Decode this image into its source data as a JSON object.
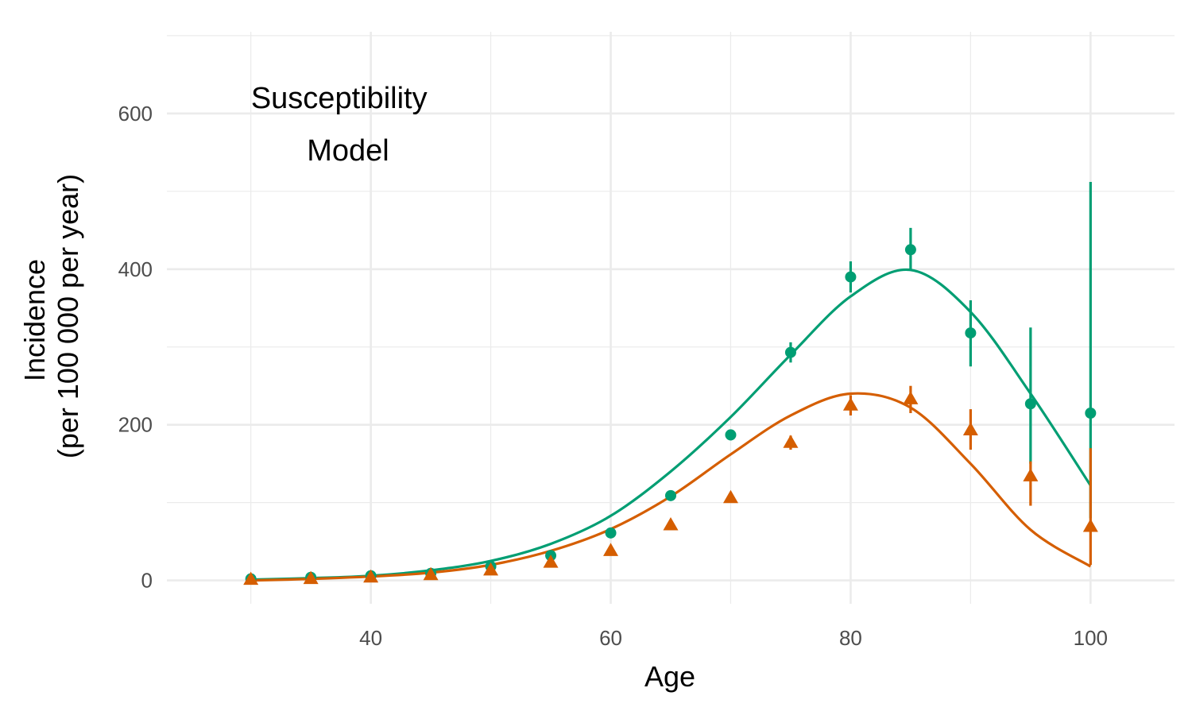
{
  "chart_data": {
    "type": "scatter",
    "xlabel": "Age",
    "ylabel_lines": [
      "Incidence",
      "(per 100 000 per year)"
    ],
    "annotation_lines": [
      "Susceptibility",
      "Model"
    ],
    "xlim": [
      23,
      107
    ],
    "ylim": [
      -30,
      705
    ],
    "x_ticks": [
      40,
      60,
      80,
      100
    ],
    "y_ticks": [
      0,
      200,
      400,
      600
    ],
    "x_minor": [
      30,
      50,
      70,
      90
    ],
    "y_minor": [
      100,
      300,
      500,
      700
    ],
    "grid": true,
    "colors": {
      "green": "#009E73",
      "orange": "#D55E00"
    },
    "series": [
      {
        "color": "#009E73",
        "marker": "circle",
        "points": [
          {
            "x": 30,
            "y": 2,
            "lo": 0,
            "hi": 4
          },
          {
            "x": 35,
            "y": 4,
            "lo": 2,
            "hi": 6
          },
          {
            "x": 40,
            "y": 6,
            "lo": 4,
            "hi": 8
          },
          {
            "x": 45,
            "y": 9,
            "lo": 7,
            "hi": 11
          },
          {
            "x": 50,
            "y": 18,
            "lo": 15,
            "hi": 21
          },
          {
            "x": 55,
            "y": 32,
            "lo": 28,
            "hi": 36
          },
          {
            "x": 60,
            "y": 61,
            "lo": 56,
            "hi": 66
          },
          {
            "x": 65,
            "y": 109,
            "lo": 103,
            "hi": 115
          },
          {
            "x": 70,
            "y": 187,
            "lo": 180,
            "hi": 194
          },
          {
            "x": 75,
            "y": 293,
            "lo": 280,
            "hi": 306
          },
          {
            "x": 80,
            "y": 390,
            "lo": 370,
            "hi": 410
          },
          {
            "x": 85,
            "y": 425,
            "lo": 398,
            "hi": 453
          },
          {
            "x": 90,
            "y": 318,
            "lo": 275,
            "hi": 360
          },
          {
            "x": 95,
            "y": 227,
            "lo": 150,
            "hi": 325
          },
          {
            "x": 100,
            "y": 215,
            "lo": 80,
            "hi": 512
          }
        ],
        "curve": [
          {
            "x": 30,
            "y": 1
          },
          {
            "x": 35,
            "y": 3
          },
          {
            "x": 40,
            "y": 6
          },
          {
            "x": 45,
            "y": 13
          },
          {
            "x": 50,
            "y": 25
          },
          {
            "x": 55,
            "y": 47
          },
          {
            "x": 60,
            "y": 83
          },
          {
            "x": 65,
            "y": 140
          },
          {
            "x": 70,
            "y": 210
          },
          {
            "x": 75,
            "y": 290
          },
          {
            "x": 80,
            "y": 365
          },
          {
            "x": 85,
            "y": 399
          },
          {
            "x": 90,
            "y": 345
          },
          {
            "x": 95,
            "y": 240
          },
          {
            "x": 100,
            "y": 122
          }
        ]
      },
      {
        "color": "#D55E00",
        "marker": "triangle",
        "points": [
          {
            "x": 30,
            "y": 1,
            "lo": 0,
            "hi": 3
          },
          {
            "x": 35,
            "y": 2,
            "lo": 1,
            "hi": 4
          },
          {
            "x": 40,
            "y": 4,
            "lo": 2,
            "hi": 6
          },
          {
            "x": 45,
            "y": 7,
            "lo": 5,
            "hi": 9
          },
          {
            "x": 50,
            "y": 13,
            "lo": 10,
            "hi": 16
          },
          {
            "x": 55,
            "y": 23,
            "lo": 20,
            "hi": 26
          },
          {
            "x": 60,
            "y": 38,
            "lo": 34,
            "hi": 42
          },
          {
            "x": 65,
            "y": 71,
            "lo": 66,
            "hi": 76
          },
          {
            "x": 70,
            "y": 106,
            "lo": 100,
            "hi": 112
          },
          {
            "x": 75,
            "y": 177,
            "lo": 168,
            "hi": 186
          },
          {
            "x": 80,
            "y": 225,
            "lo": 212,
            "hi": 238
          },
          {
            "x": 85,
            "y": 233,
            "lo": 215,
            "hi": 250
          },
          {
            "x": 90,
            "y": 193,
            "lo": 168,
            "hi": 220
          },
          {
            "x": 95,
            "y": 134,
            "lo": 96,
            "hi": 153
          },
          {
            "x": 100,
            "y": 69,
            "lo": 20,
            "hi": 170
          }
        ],
        "curve": [
          {
            "x": 30,
            "y": 0
          },
          {
            "x": 35,
            "y": 2
          },
          {
            "x": 40,
            "y": 5
          },
          {
            "x": 45,
            "y": 10
          },
          {
            "x": 50,
            "y": 20
          },
          {
            "x": 55,
            "y": 38
          },
          {
            "x": 60,
            "y": 66
          },
          {
            "x": 65,
            "y": 108
          },
          {
            "x": 70,
            "y": 162
          },
          {
            "x": 75,
            "y": 212
          },
          {
            "x": 80,
            "y": 240
          },
          {
            "x": 85,
            "y": 222
          },
          {
            "x": 90,
            "y": 150
          },
          {
            "x": 95,
            "y": 65
          },
          {
            "x": 100,
            "y": 18
          }
        ]
      }
    ]
  }
}
